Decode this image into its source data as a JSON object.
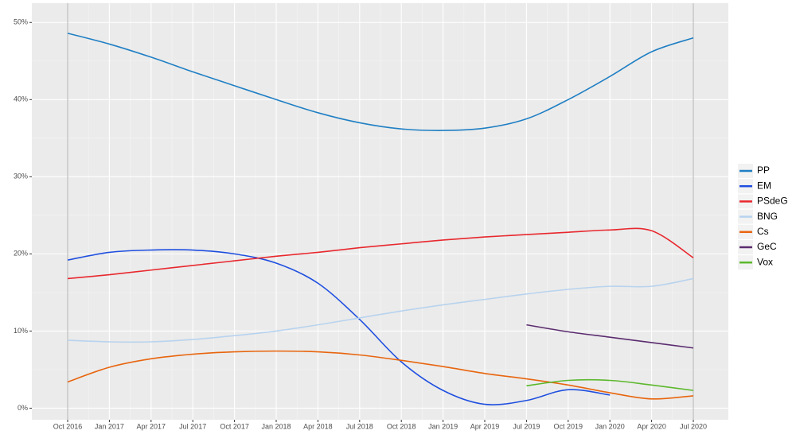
{
  "chart_data": {
    "type": "line",
    "categories": [
      "Oct 2016",
      "Jan 2017",
      "Apr 2017",
      "Jul 2017",
      "Oct 2017",
      "Jan 2018",
      "Apr 2018",
      "Jul 2018",
      "Oct 2018",
      "Jan 2019",
      "Apr 2019",
      "Jul 2019",
      "Oct 2019",
      "Jan 2020",
      "Apr 2020",
      "Jul 2020"
    ],
    "series": [
      {
        "name": "PP",
        "color": "#1f7fc4",
        "values": [
          48.6,
          47.2,
          45.5,
          43.6,
          41.8,
          40.0,
          38.3,
          37.0,
          36.2,
          36.0,
          36.3,
          37.5,
          40.0,
          43.0,
          46.2,
          48.0
        ]
      },
      {
        "name": "EM",
        "color": "#1f4fe0",
        "values": [
          19.2,
          20.2,
          20.5,
          20.5,
          20.0,
          18.8,
          16.2,
          11.5,
          6.0,
          2.3,
          0.5,
          1.0,
          2.4,
          1.7,
          null,
          null
        ]
      },
      {
        "name": "PSdeG",
        "color": "#e8282e",
        "values": [
          16.8,
          17.3,
          17.9,
          18.5,
          19.1,
          19.7,
          20.2,
          20.8,
          21.3,
          21.8,
          22.2,
          22.5,
          22.8,
          23.1,
          23.0,
          19.5
        ]
      },
      {
        "name": "BNG",
        "color": "#b8d3ee",
        "values": [
          8.8,
          8.6,
          8.6,
          8.9,
          9.4,
          10.0,
          10.8,
          11.7,
          12.6,
          13.4,
          14.1,
          14.8,
          15.4,
          15.8,
          15.8,
          16.8
        ]
      },
      {
        "name": "Cs",
        "color": "#e8650e",
        "values": [
          3.4,
          5.3,
          6.4,
          7.0,
          7.3,
          7.4,
          7.3,
          6.9,
          6.2,
          5.4,
          4.5,
          3.8,
          3.0,
          2.0,
          1.2,
          1.6
        ]
      },
      {
        "name": "GeC",
        "color": "#5b2c6f",
        "values": [
          null,
          null,
          null,
          null,
          null,
          null,
          null,
          null,
          null,
          null,
          null,
          10.8,
          9.9,
          9.2,
          8.5,
          7.8
        ]
      },
      {
        "name": "Vox",
        "color": "#5cb82c",
        "values": [
          null,
          null,
          null,
          null,
          null,
          null,
          null,
          null,
          null,
          null,
          null,
          2.9,
          3.6,
          3.6,
          3.0,
          2.3
        ]
      }
    ],
    "ylim": [
      -1.5,
      52.5
    ],
    "yticks": [
      {
        "value": 0,
        "label": "0%"
      },
      {
        "value": 10,
        "label": "10%"
      },
      {
        "value": 20,
        "label": "20%"
      },
      {
        "value": 30,
        "label": "30%"
      },
      {
        "value": 40,
        "label": "40%"
      },
      {
        "value": 50,
        "label": "50%"
      }
    ],
    "grid": true,
    "legend": "right"
  }
}
